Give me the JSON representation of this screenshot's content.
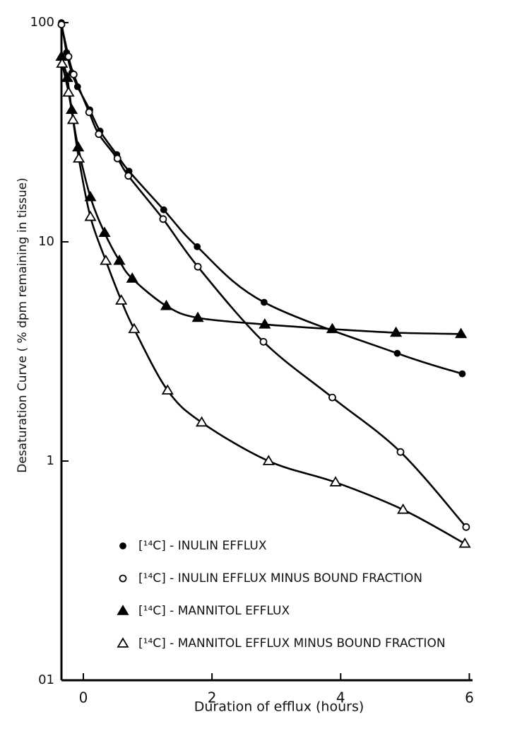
{
  "chart_data": {
    "type": "line",
    "ylabel": "Desaturation Curve ( % dpm remaining in tissue)",
    "xlabel": "Duration of efflux (hours)",
    "ylog": true,
    "xlim": [
      -0.34,
      6.05
    ],
    "ylim": [
      0.1,
      100
    ],
    "xticks": [
      0,
      2,
      4,
      6
    ],
    "yticks": [
      100,
      10,
      1,
      {
        "value": 0.1,
        "label": "01"
      }
    ],
    "series": [
      {
        "name": "[¹⁴C] - INULIN EFFLUX",
        "color": "#000000",
        "marker": "filled-circle",
        "x": [
          -0.34,
          -0.26,
          -0.18,
          -0.09,
          0.1,
          0.26,
          0.52,
          0.71,
          1.25,
          1.77,
          2.81,
          4.88,
          5.89
        ],
        "values": [
          100,
          73,
          59,
          51,
          40,
          32,
          25,
          21,
          14,
          9.5,
          5.3,
          3.1,
          2.5
        ]
      },
      {
        "name": "[¹⁴C] - INULIN EFFLUX MINUS BOUND FRACTION",
        "color": "#000000",
        "marker": "open-circle",
        "x": [
          -0.34,
          -0.23,
          -0.15,
          0.09,
          0.24,
          0.53,
          0.7,
          1.24,
          1.78,
          2.8,
          3.87,
          4.93,
          5.95
        ],
        "values": [
          98,
          70,
          58,
          39,
          31,
          24,
          20,
          12.7,
          7.7,
          3.5,
          1.95,
          1.1,
          0.5
        ]
      },
      {
        "name": "[¹⁴C] - MANNITOL EFFLUX",
        "color": "#000000",
        "marker": "filled-triangle",
        "x": [
          -0.34,
          -0.25,
          -0.18,
          -0.08,
          0.11,
          0.33,
          0.56,
          0.76,
          1.29,
          1.78,
          2.82,
          3.87,
          4.86,
          5.87
        ],
        "values": [
          70,
          56,
          40,
          27,
          16,
          11,
          8.2,
          6.8,
          5.1,
          4.5,
          4.2,
          4.0,
          3.85,
          3.8
        ]
      },
      {
        "name": "[¹⁴C] - MANNITOL EFFLUX MINUS BOUND FRACTION",
        "color": "#000000",
        "marker": "open-triangle",
        "x": [
          -0.33,
          -0.23,
          -0.16,
          -0.07,
          0.11,
          0.35,
          0.59,
          0.79,
          1.31,
          1.84,
          2.88,
          3.92,
          4.97,
          5.93
        ],
        "values": [
          65,
          48,
          36,
          24,
          13,
          8.2,
          5.4,
          4.0,
          2.1,
          1.5,
          1.0,
          0.8,
          0.6,
          0.42
        ]
      }
    ]
  }
}
